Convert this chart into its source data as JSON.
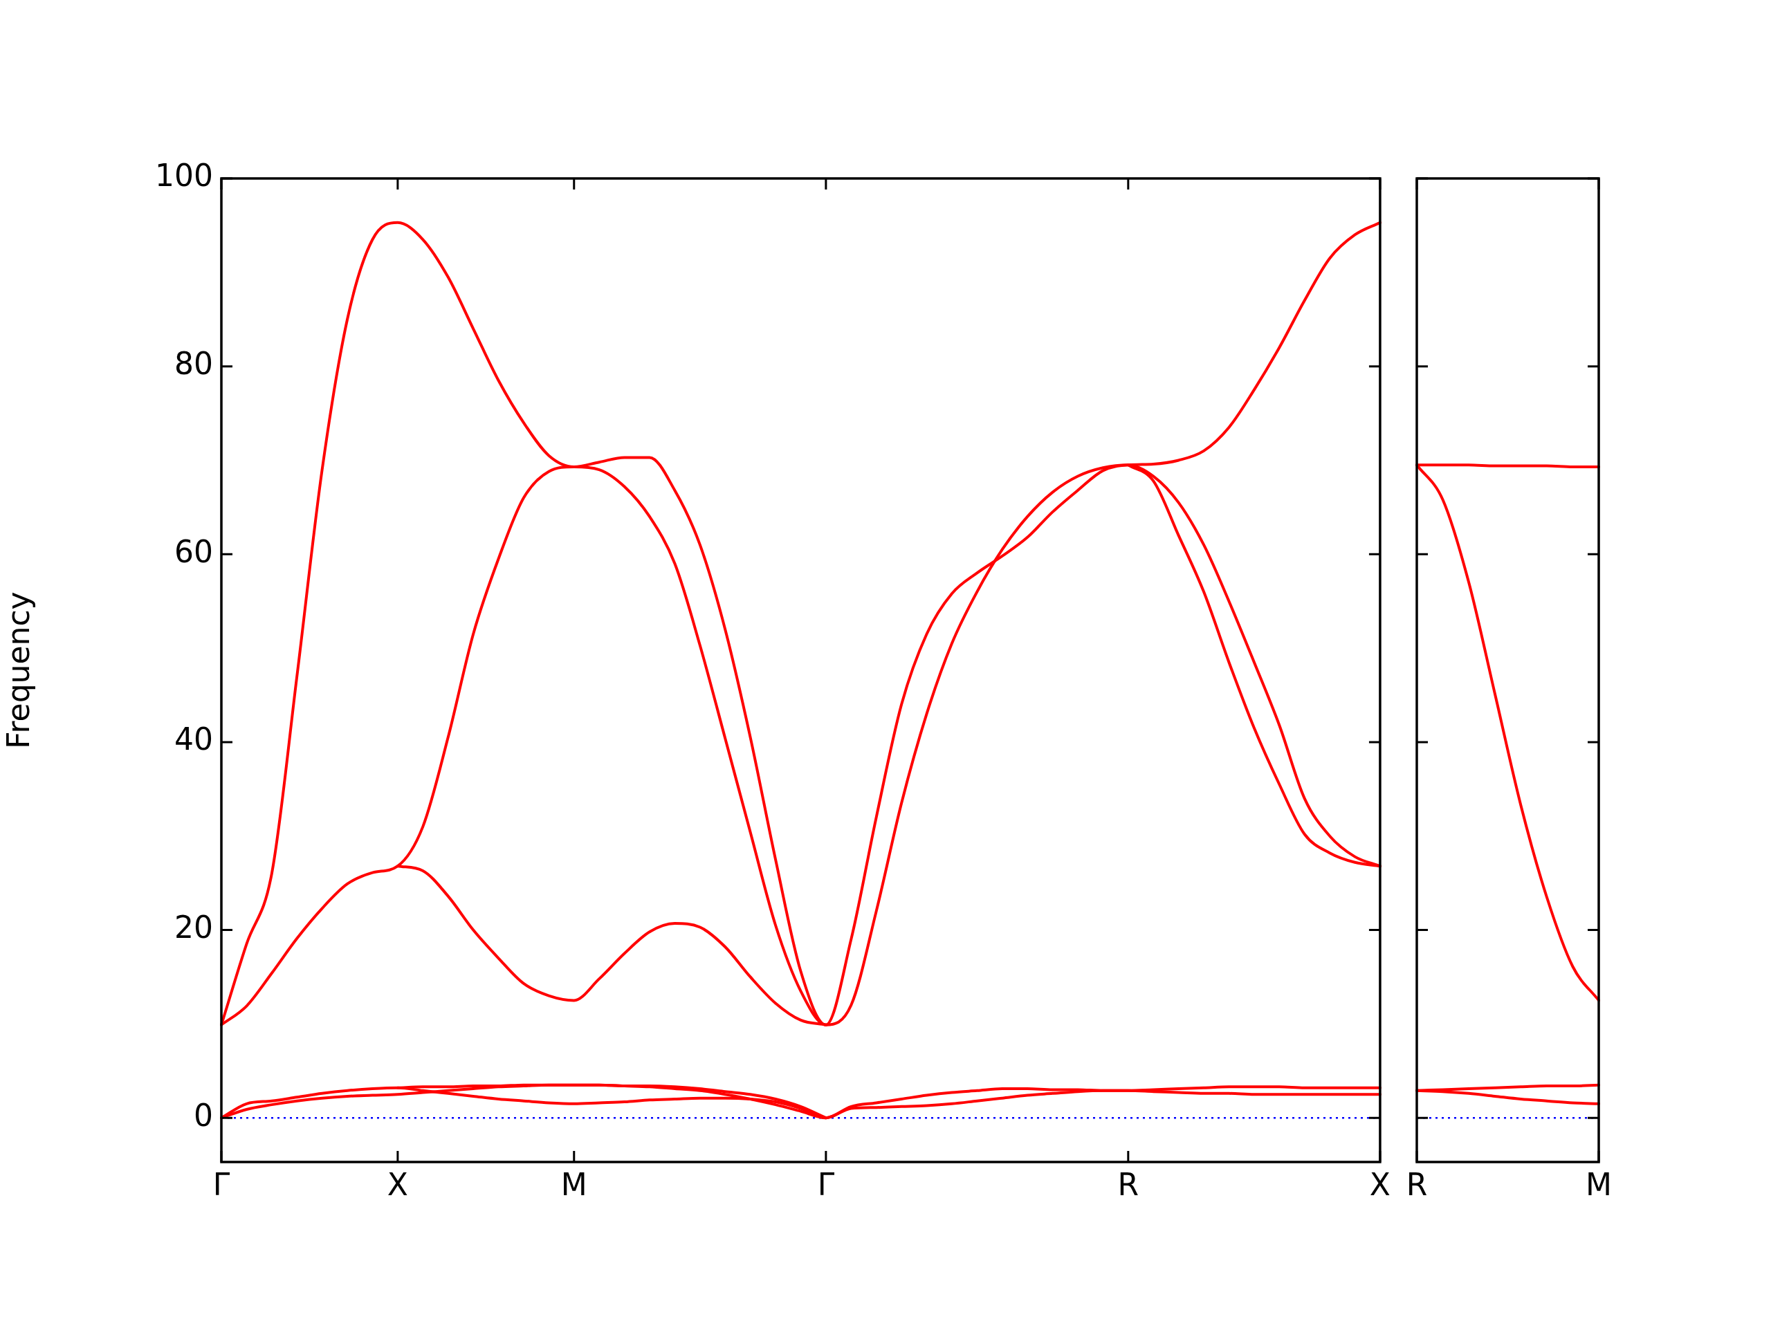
{
  "chart_data": [
    {
      "type": "line",
      "ylabel": "Frequency",
      "ylim": [
        -4.7,
        100
      ],
      "yticks": [
        0,
        20,
        40,
        60,
        80,
        100
      ],
      "categories": [
        "Γ",
        null,
        null,
        null,
        null,
        null,
        null,
        "X",
        null,
        null,
        null,
        null,
        null,
        null,
        "M",
        null,
        null,
        null,
        null,
        null,
        null,
        null,
        null,
        null,
        "Γ",
        null,
        null,
        null,
        null,
        null,
        null,
        null,
        null,
        null,
        null,
        null,
        "R",
        null,
        null,
        null,
        null,
        null,
        null,
        null,
        null,
        null,
        "X"
      ],
      "marker": "none",
      "line_style": "solid",
      "grid": false,
      "legend": false,
      "ref_lines": [
        {
          "axis": "y",
          "value": 0,
          "color": "#0000ff",
          "line_style": "dotted"
        }
      ],
      "series": [
        {
          "color": "#ff0000",
          "values": [
            0,
            0.9,
            1.4,
            1.8,
            2.1,
            2.3,
            2.4,
            2.5,
            2.7,
            2.9,
            3.1,
            3.3,
            3.4,
            3.5,
            3.5,
            3.5,
            3.4,
            3.3,
            3.1,
            2.9,
            2.5,
            2.0,
            1.4,
            0.7,
            0,
            1.0,
            1.1,
            1.2,
            1.3,
            1.5,
            1.8,
            2.1,
            2.4,
            2.6,
            2.8,
            2.9,
            2.9,
            2.8,
            2.7,
            2.6,
            2.6,
            2.5,
            2.5,
            2.5,
            2.5,
            2.5,
            2.5
          ]
        },
        {
          "color": "#ff0000",
          "values": [
            0,
            1.5,
            1.8,
            2.2,
            2.6,
            2.9,
            3.1,
            3.2,
            2.9,
            2.6,
            2.3,
            2.0,
            1.8,
            1.6,
            1.5,
            1.6,
            1.7,
            1.9,
            2.0,
            2.1,
            2.1,
            2.0,
            1.7,
            1.0,
            0,
            1.2,
            1.6,
            2.0,
            2.4,
            2.7,
            2.9,
            3.1,
            3.1,
            3.0,
            3.0,
            2.9,
            2.9,
            3.0,
            3.1,
            3.2,
            3.3,
            3.3,
            3.3,
            3.2,
            3.2,
            3.2,
            3.2
          ]
        },
        {
          "color": "#ff0000",
          "values": [
            null,
            null,
            null,
            null,
            null,
            null,
            null,
            3.2,
            3.3,
            3.3,
            3.4,
            3.4,
            3.5,
            3.5,
            3.5,
            3.5,
            3.4,
            3.4,
            3.3,
            3.1,
            2.8,
            2.5,
            2.0,
            1.2,
            0,
            null,
            null,
            null,
            null,
            null,
            null,
            null,
            null,
            null,
            null,
            null,
            null,
            null,
            null,
            null,
            null,
            null,
            null,
            null,
            null,
            null,
            null
          ]
        },
        {
          "color": "#ff0000",
          "values": [
            null,
            null,
            null,
            null,
            null,
            null,
            null,
            26.8,
            26.3,
            23.6,
            20,
            17,
            14.3,
            13,
            12.5,
            14.8,
            17.5,
            19.8,
            20.7,
            20.3,
            18.2,
            15,
            12.2,
            10.4,
            9.9,
            null,
            null,
            null,
            null,
            null,
            null,
            null,
            null,
            null,
            null,
            null,
            69.5,
            67.8,
            62,
            56,
            48.5,
            41.5,
            35.5,
            30.2,
            28.2,
            27.2,
            26.8
          ]
        },
        {
          "color": "#ff0000",
          "values": [
            9.9,
            11.9,
            15.4,
            19.1,
            22.3,
            24.9,
            26.1,
            26.8,
            31,
            40.5,
            51.5,
            59.5,
            66,
            68.8,
            69.3,
            69.0,
            67.2,
            64,
            59,
            50.3,
            40.4,
            30.4,
            20.5,
            13.5,
            9.9,
            12,
            22,
            33.5,
            43,
            50.5,
            56,
            60.5,
            64,
            66.6,
            68.3,
            69.2,
            69.5,
            68.3,
            65.5,
            61,
            55,
            48.5,
            41.8,
            34,
            30,
            27.8,
            26.8
          ]
        },
        {
          "color": "#ff0000",
          "values": [
            9.9,
            18.5,
            26,
            47,
            69,
            85,
            93.5,
            95.3,
            93.5,
            89.5,
            84,
            78.5,
            74,
            70.5,
            69.3,
            69.8,
            70.3,
            70.3,
            66.8,
            61,
            52,
            40.5,
            27.5,
            15.6,
            9.9,
            19,
            32,
            44,
            51.5,
            55.8,
            58,
            59.8,
            61.8,
            64.5,
            66.8,
            68.9,
            69.5,
            69.6,
            70,
            71,
            73.5,
            77.5,
            82,
            87,
            91.5,
            94,
            95.3
          ]
        }
      ]
    },
    {
      "type": "line",
      "ylim": [
        -4.7,
        100
      ],
      "yticks": [
        0,
        20,
        40,
        60,
        80,
        100
      ],
      "tick_labels": "x",
      "categories": [
        "R",
        null,
        null,
        null,
        null,
        null,
        null,
        "M"
      ],
      "marker": "none",
      "line_style": "solid",
      "grid": false,
      "legend": false,
      "ref_lines": [
        {
          "axis": "y",
          "value": 0,
          "color": "#0000ff",
          "line_style": "dotted"
        }
      ],
      "series": [
        {
          "color": "#ff0000",
          "values": [
            69.5,
            69.5,
            69.5,
            69.4,
            69.4,
            69.4,
            69.3,
            69.3
          ]
        },
        {
          "color": "#ff0000",
          "values": [
            69.5,
            65.8,
            57,
            45.2,
            33.3,
            23.5,
            16.1,
            12.5
          ]
        },
        {
          "color": "#ff0000",
          "values": [
            2.9,
            3.0,
            3.1,
            3.2,
            3.3,
            3.4,
            3.4,
            3.5
          ]
        },
        {
          "color": "#ff0000",
          "values": [
            2.9,
            2.8,
            2.6,
            2.3,
            2.0,
            1.8,
            1.6,
            1.5
          ]
        }
      ]
    }
  ]
}
